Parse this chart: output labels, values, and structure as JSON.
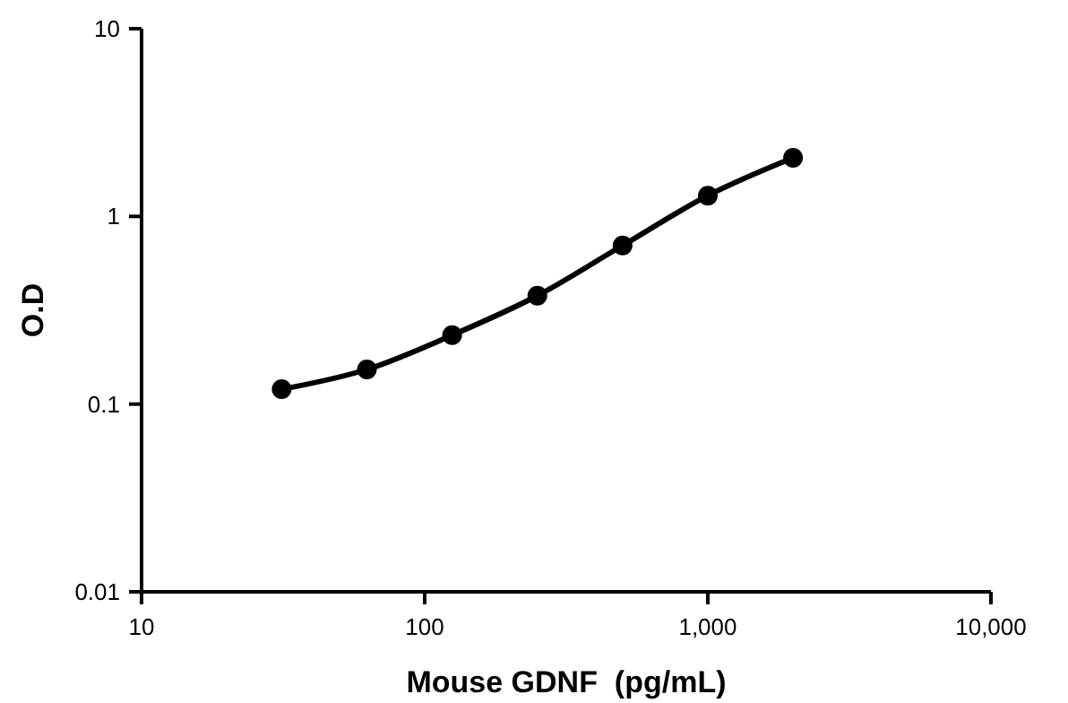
{
  "chart_data": {
    "type": "line",
    "xlabel": "Mouse GDNF  (pg/mL)",
    "ylabel": "O.D",
    "log": "xy",
    "x": [
      31.25,
      62.5,
      125,
      250,
      500,
      1000,
      2000
    ],
    "series": [
      {
        "color": "#000000",
        "values": [
          0.12,
          0.153,
          0.233,
          0.378,
          0.7,
          1.29,
          2.05
        ]
      }
    ],
    "xlim": [
      10,
      10000
    ],
    "xticks": [
      10,
      100,
      {
        "value": 1000,
        "label": "1,000"
      },
      {
        "value": 10000,
        "label": "10,000"
      }
    ],
    "ylim": [
      0.01,
      10
    ],
    "yticks": [
      0.01,
      0.1,
      1,
      10
    ],
    "marker": "circle",
    "line_style": "solid",
    "grid": false
  }
}
